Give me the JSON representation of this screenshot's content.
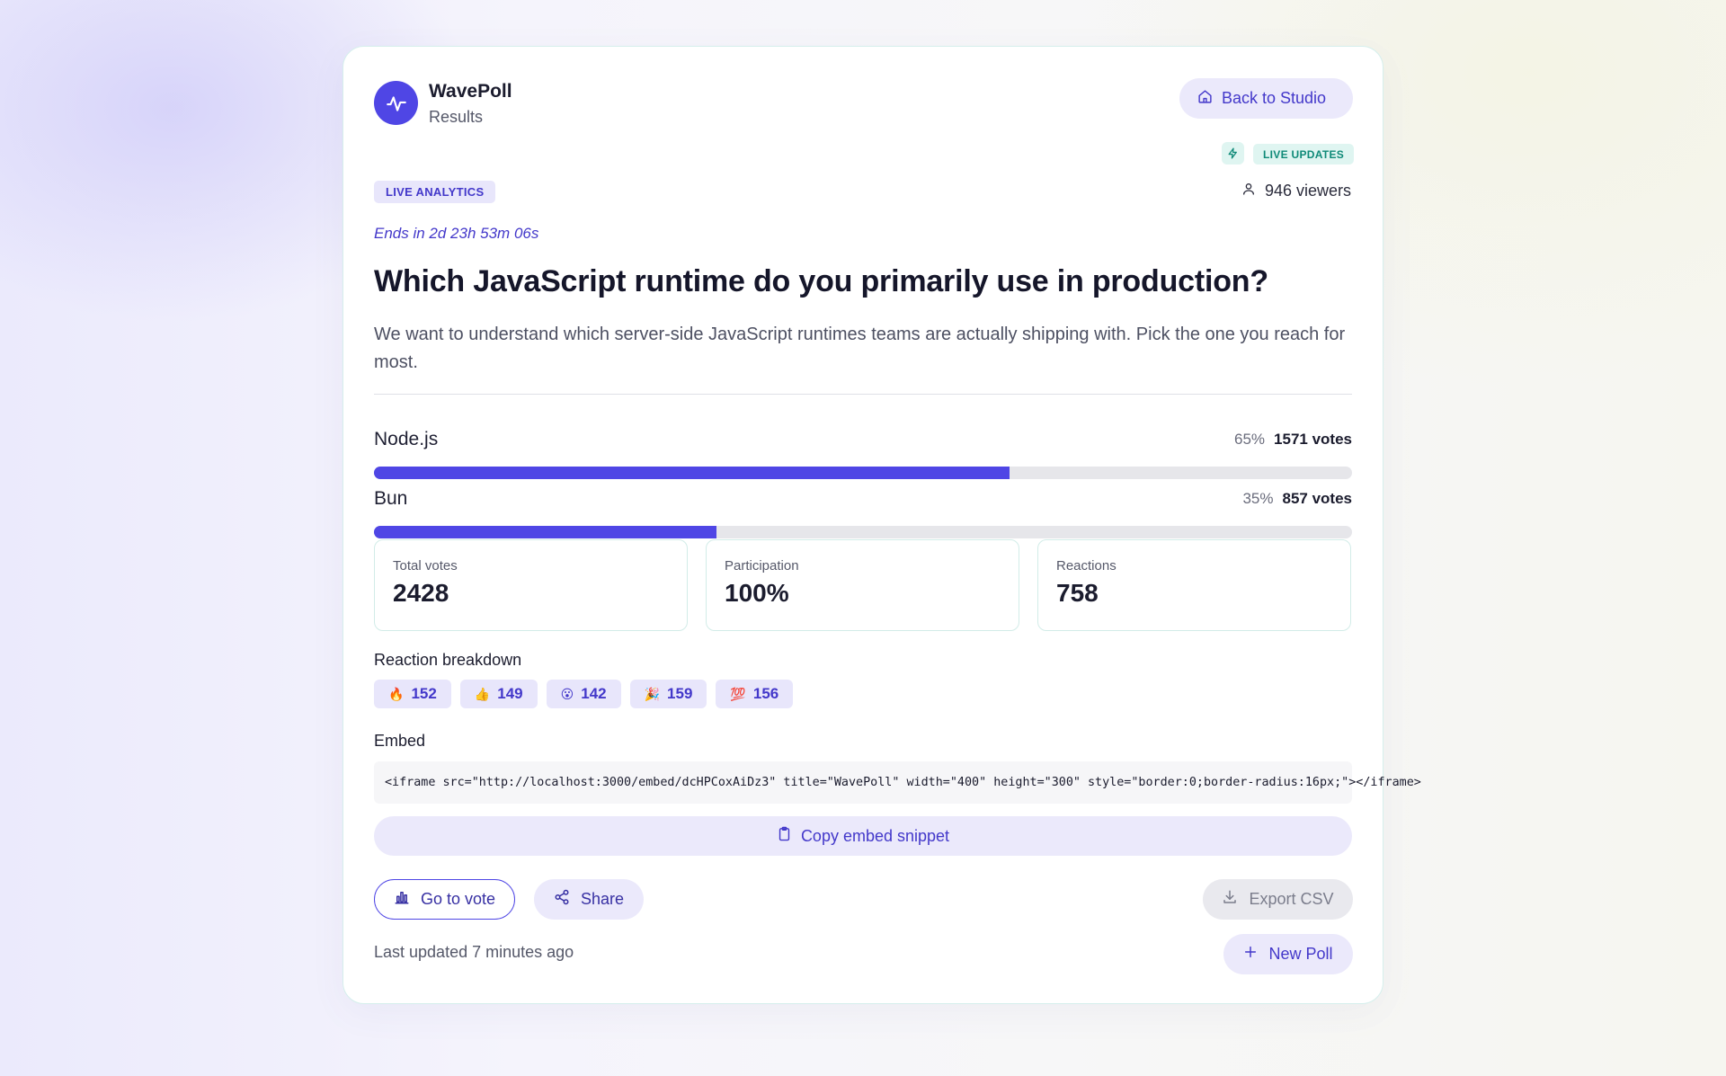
{
  "brand": {
    "name": "WavePoll",
    "subtitle": "Results",
    "logo_icon": "wave-icon"
  },
  "header": {
    "back_label": "Back to Studio",
    "back_icon": "home-icon"
  },
  "status": {
    "live_updates_label": "LIVE UPDATES",
    "live_icon": "bolt-icon",
    "viewers_text": "946 viewers",
    "viewers_icon": "user-icon"
  },
  "badge": {
    "live_analytics": "LIVE ANALYTICS"
  },
  "poll": {
    "ends_text": "Ends in 2d 23h 53m 06s",
    "question": "Which JavaScript runtime do you primarily use in production?",
    "description": "We want to understand which server-side JavaScript runtimes teams are actually shipping with. Pick the one you reach for most.",
    "options": [
      {
        "label": "Node.js",
        "pct_text": "65%",
        "votes_text": "1571 votes",
        "fraction": 0.65
      },
      {
        "label": "Bun",
        "pct_text": "35%",
        "votes_text": "857 votes",
        "fraction": 0.35
      }
    ]
  },
  "stats": [
    {
      "label": "Total votes",
      "value": "2428"
    },
    {
      "label": "Participation",
      "value": "100%"
    },
    {
      "label": "Reactions",
      "value": "758"
    }
  ],
  "reactions": {
    "title": "Reaction breakdown",
    "items": [
      {
        "emoji": "🔥",
        "count": "152"
      },
      {
        "emoji": "👍",
        "count": "149"
      },
      {
        "emoji": "😮",
        "count": "142"
      },
      {
        "emoji": "🎉",
        "count": "159"
      },
      {
        "emoji": "💯",
        "count": "156"
      }
    ]
  },
  "embed": {
    "title": "Embed",
    "code": "<iframe src=\"http://localhost:3000/embed/dcHPCoxAiDz3\" title=\"WavePoll\" width=\"400\" height=\"300\" style=\"border:0;border-radius:16px;\"></iframe>",
    "copy_label": "Copy embed snippet",
    "copy_icon": "clipboard-icon"
  },
  "actions": {
    "go_to_vote": "Go to vote",
    "share": "Share",
    "export_csv": "Export CSV",
    "new_poll": "New Poll",
    "last_updated": "Last updated 7 minutes ago"
  },
  "colors": {
    "accent": "#4f46e5",
    "accent_soft": "#ebe9fb",
    "teal": "#0f8a78",
    "track": "#e6e6ea"
  }
}
